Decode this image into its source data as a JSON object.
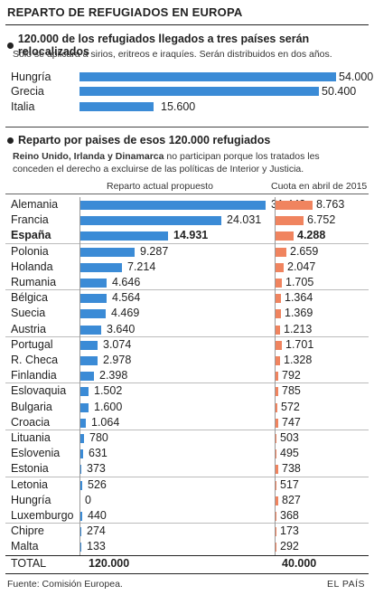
{
  "title": "REPARTO DE REFUGIADOS EN EUROPA",
  "section1": {
    "heading": "120.000 de los refugiados llegados a tres países serán relocalizados",
    "subtitle": "Solo se aplicará a sirios, eritreos e iraquíes. Serán distribuidos en dos años."
  },
  "section2": {
    "heading": "Reparto por paises de esos 120.000 refugiados",
    "subtitle_bold": "Reino Unido, Irlanda y Dinamarca",
    "subtitle_rest_1": " no participan porque los tratados les",
    "subtitle_line2": "conceden el derecho a excluirse de las políticas de Interior y Justicia.",
    "col_left": "Reparto actual propuesto",
    "col_right": "Cuota en abril de 2015"
  },
  "totals": {
    "label": "TOTAL",
    "left": "120.000",
    "right": "40.000"
  },
  "footer": {
    "source": "Fuente: Comisión Europea.",
    "brand": "EL PAÍS"
  },
  "colors": {
    "blue": "#3b8bd6",
    "orange": "#f0845f"
  },
  "chart_data": [
    {
      "type": "bar",
      "orientation": "horizontal",
      "title": "120.000 de los refugiados llegados a tres países serán relocalizados",
      "categories": [
        "Hungría",
        "Grecia",
        "Italia"
      ],
      "values": [
        54000,
        50400,
        15600
      ],
      "value_labels": [
        "54.000",
        "50.400",
        "15.600"
      ]
    },
    {
      "type": "bar",
      "orientation": "horizontal",
      "title": "Reparto por paises de esos 120.000 refugiados",
      "categories": [
        "Alemania",
        "Francia",
        "España",
        "Polonia",
        "Holanda",
        "Rumania",
        "Bélgica",
        "Suecia",
        "Austria",
        "Portugal",
        "R. Checa",
        "Finlandia",
        "Eslovaquia",
        "Bulgaria",
        "Croacia",
        "Lituania",
        "Eslovenia",
        "Estonia",
        "Letonia",
        "Hungría",
        "Luxemburgo",
        "Chipre",
        "Malta"
      ],
      "series": [
        {
          "name": "Reparto actual propuesto",
          "values": [
            31443,
            24031,
            14931,
            9287,
            7214,
            4646,
            4564,
            4469,
            3640,
            3074,
            2978,
            2398,
            1502,
            1600,
            1064,
            780,
            631,
            373,
            526,
            0,
            440,
            274,
            133
          ],
          "labels": [
            "31.443",
            "24.031",
            "14.931",
            "9.287",
            "7.214",
            "4.646",
            "4.564",
            "4.469",
            "3.640",
            "3.074",
            "2.978",
            "2.398",
            "1.502",
            "1.600",
            "1.064",
            "780",
            "631",
            "373",
            "526",
            "0",
            "440",
            "274",
            "133"
          ]
        },
        {
          "name": "Cuota en abril de 2015",
          "values": [
            8763,
            6752,
            4288,
            2659,
            2047,
            1705,
            1364,
            1369,
            1213,
            1701,
            1328,
            792,
            785,
            572,
            747,
            503,
            495,
            738,
            517,
            827,
            368,
            173,
            292
          ],
          "labels": [
            "8.763",
            "6.752",
            "4.288",
            "2.659",
            "2.047",
            "1.705",
            "1.364",
            "1.369",
            "1.213",
            "1.701",
            "1.328",
            "792",
            "785",
            "572",
            "747",
            "503",
            "495",
            "738",
            "517",
            "827",
            "368",
            "173",
            "292"
          ]
        }
      ],
      "highlight": "España"
    }
  ]
}
